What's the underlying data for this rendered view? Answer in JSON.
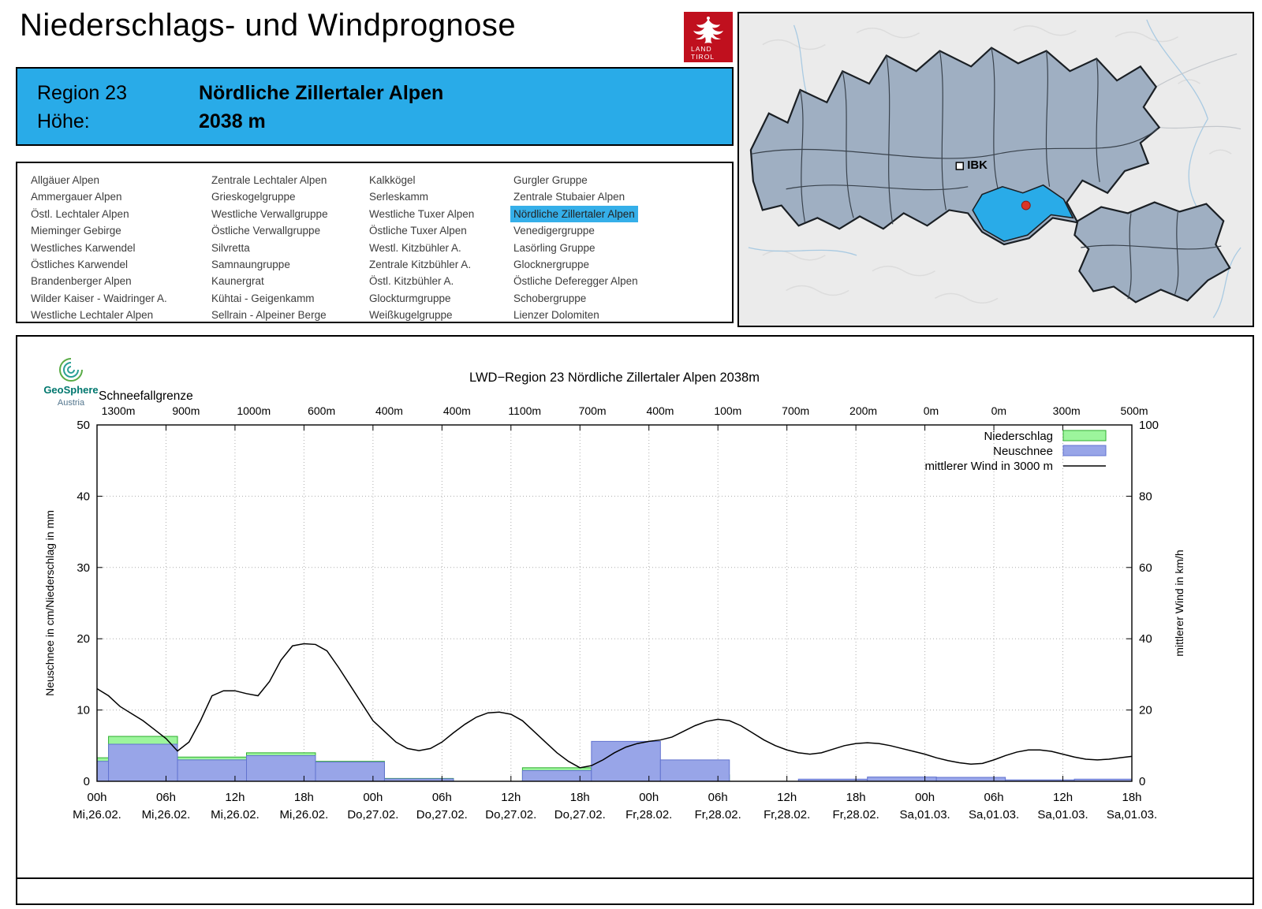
{
  "page": {
    "title": "Niederschlags- und Windprognose"
  },
  "logo": {
    "land": "LAND",
    "tirol": "TIROL",
    "color": "#c0101e"
  },
  "region_header": {
    "region_label": "Region 23",
    "region_name": "Nördliche Zillertaler Alpen",
    "hoehe_label": "Höhe:",
    "hoehe_value": "2038 m",
    "accent_color": "#29abe8"
  },
  "region_list": {
    "selected": "Nördliche Zillertaler Alpen",
    "highlight_color": "#35afe9",
    "columns": [
      [
        "Allgäuer Alpen",
        "Ammergauer Alpen",
        "Östl. Lechtaler Alpen",
        "Mieminger Gebirge",
        "Westliches Karwendel",
        "Östliches Karwendel",
        "Brandenberger Alpen",
        "Wilder Kaiser - Waidringer A.",
        "Westliche Lechtaler Alpen"
      ],
      [
        "Zentrale Lechtaler Alpen",
        "Grieskogelgruppe",
        "Westliche Verwallgruppe",
        "Östliche Verwallgruppe",
        "Silvretta",
        "Samnaungruppe",
        "Kaunergrat",
        "Kühtai - Geigenkamm",
        "Sellrain - Alpeiner Berge"
      ],
      [
        "Kalkkögel",
        "Serleskamm",
        "Westliche Tuxer Alpen",
        "Östliche Tuxer Alpen",
        "Westl. Kitzbühler A.",
        "Zentrale Kitzbühler A.",
        "Östl. Kitzbühler A.",
        "Glockturmgruppe",
        "Weißkugelgruppe"
      ],
      [
        "Gurgler Gruppe",
        "Zentrale Stubaier Alpen",
        "Nördliche Zillertaler Alpen",
        "Venedigergruppe",
        "Lasörling Gruppe",
        "Glocknergruppe",
        "Östliche Deferegger Alpen",
        "Schobergruppe",
        "Lienzer Dolomiten"
      ]
    ]
  },
  "map": {
    "ibk_label": "IBK",
    "highlight_color": "#29abe8",
    "region_fill": "#9fafc2",
    "marker_color": "#d93526"
  },
  "chart_data": {
    "type": "bar+line",
    "title": "LWD−Region 23 Nördliche Zillertaler Alpen 2038m",
    "logo": {
      "name": "GeoSphere",
      "sub": "Austria"
    },
    "snowline": {
      "label": "Schneefallgrenze",
      "values": [
        "1300m",
        "900m",
        "1000m",
        "600m",
        "400m",
        "400m",
        "1100m",
        "700m",
        "400m",
        "100m",
        "700m",
        "200m",
        "0m",
        "0m",
        "300m",
        "500m"
      ]
    },
    "y_left": {
      "label": "Neuschnee in cm/Niederschlag in mm",
      "min": 0,
      "max": 50,
      "ticks": [
        0,
        10,
        20,
        30,
        40,
        50
      ]
    },
    "y_right": {
      "label": "mittlerer Wind in km/h",
      "min": 0,
      "max": 100,
      "ticks": [
        0,
        20,
        40,
        60,
        80,
        100
      ]
    },
    "x_ticks": [
      {
        "hour": "00h",
        "date": "Mi,26.02."
      },
      {
        "hour": "06h",
        "date": "Mi,26.02."
      },
      {
        "hour": "12h",
        "date": "Mi,26.02."
      },
      {
        "hour": "18h",
        "date": "Mi,26.02."
      },
      {
        "hour": "00h",
        "date": "Do,27.02."
      },
      {
        "hour": "06h",
        "date": "Do,27.02."
      },
      {
        "hour": "12h",
        "date": "Do,27.02."
      },
      {
        "hour": "18h",
        "date": "Do,27.02."
      },
      {
        "hour": "00h",
        "date": "Fr,28.02."
      },
      {
        "hour": "06h",
        "date": "Fr,28.02."
      },
      {
        "hour": "12h",
        "date": "Fr,28.02."
      },
      {
        "hour": "18h",
        "date": "Fr,28.02."
      },
      {
        "hour": "00h",
        "date": "Sa,01.03."
      },
      {
        "hour": "06h",
        "date": "Sa,01.03."
      },
      {
        "hour": "12h",
        "date": "Sa,01.03."
      },
      {
        "hour": "18h",
        "date": "Sa,01.03."
      }
    ],
    "legend": [
      {
        "label": "Niederschlag",
        "type": "box",
        "color": "#9cf59c"
      },
      {
        "label": "Neuschnee",
        "type": "box",
        "color": "#98a5e8"
      },
      {
        "label": "mittlerer Wind in 3000 m",
        "type": "line",
        "color": "#000000"
      }
    ],
    "colors": {
      "niederschlag_fill": "#9cf59c",
      "niederschlag_stroke": "#2fae2f",
      "neuschnee_fill": "#98a5e8",
      "neuschnee_stroke": "#6273cf",
      "wind": "#000000",
      "grid": "#adadad"
    },
    "bars": [
      {
        "start_h": -5,
        "end_h": 1,
        "niederschlag_mm": 3.3,
        "neuschnee_cm": 2.8
      },
      {
        "start_h": 1,
        "end_h": 7,
        "niederschlag_mm": 6.3,
        "neuschnee_cm": 5.2
      },
      {
        "start_h": 7,
        "end_h": 13,
        "niederschlag_mm": 3.4,
        "neuschnee_cm": 3.0
      },
      {
        "start_h": 13,
        "end_h": 19,
        "niederschlag_mm": 4.0,
        "neuschnee_cm": 3.6
      },
      {
        "start_h": 19,
        "end_h": 25,
        "niederschlag_mm": 2.8,
        "neuschnee_cm": 2.7
      },
      {
        "start_h": 25,
        "end_h": 31,
        "niederschlag_mm": 0.4,
        "neuschnee_cm": 0.35
      },
      {
        "start_h": 31,
        "end_h": 37,
        "niederschlag_mm": 0,
        "neuschnee_cm": 0
      },
      {
        "start_h": 37,
        "end_h": 43,
        "niederschlag_mm": 1.9,
        "neuschnee_cm": 1.5
      },
      {
        "start_h": 43,
        "end_h": 49,
        "niederschlag_mm": 1.9,
        "neuschnee_cm": 5.6
      },
      {
        "start_h": 49,
        "end_h": 55,
        "niederschlag_mm": 0.9,
        "neuschnee_cm": 3.0
      },
      {
        "start_h": 55,
        "end_h": 61,
        "niederschlag_mm": 0,
        "neuschnee_cm": 0
      },
      {
        "start_h": 61,
        "end_h": 67,
        "niederschlag_mm": 0,
        "neuschnee_cm": 0.3
      },
      {
        "start_h": 67,
        "end_h": 73,
        "niederschlag_mm": 0,
        "neuschnee_cm": 0.6
      },
      {
        "start_h": 73,
        "end_h": 79,
        "niederschlag_mm": 0,
        "neuschnee_cm": 0.55
      },
      {
        "start_h": 79,
        "end_h": 85,
        "niederschlag_mm": 0,
        "neuschnee_cm": 0.2
      },
      {
        "start_h": 85,
        "end_h": 91,
        "niederschlag_mm": 0,
        "neuschnee_cm": 0.3
      }
    ],
    "wind_start_hour": 0,
    "wind_step_h": 1,
    "wind_kmh_values": [
      26,
      24,
      21,
      19,
      17,
      14.5,
      12,
      8.5,
      11,
      17,
      24,
      25.4,
      25.4,
      24.6,
      24,
      28,
      34,
      38,
      38.6,
      38.4,
      36.6,
      32,
      27,
      22,
      17,
      14,
      11,
      9.2,
      8.6,
      9.2,
      11,
      13.6,
      16,
      18,
      19.2,
      19.4,
      18.8,
      17,
      14,
      11,
      8,
      5.6,
      3.8,
      4.4,
      6,
      8,
      9.6,
      10.6,
      11.2,
      11.6,
      12.4,
      14,
      15.6,
      16.8,
      17.4,
      17,
      15.6,
      13.6,
      11.6,
      10,
      8.8,
      8,
      7.6,
      8,
      9,
      10,
      10.6,
      10.8,
      10.6,
      10,
      9.2,
      8.4,
      7.6,
      6.6,
      5.8,
      5.2,
      4.8,
      5,
      6,
      7.2,
      8.2,
      8.8,
      8.8,
      8.4,
      7.6,
      6.8,
      6.2,
      6,
      6.2,
      6.6,
      7
    ]
  }
}
